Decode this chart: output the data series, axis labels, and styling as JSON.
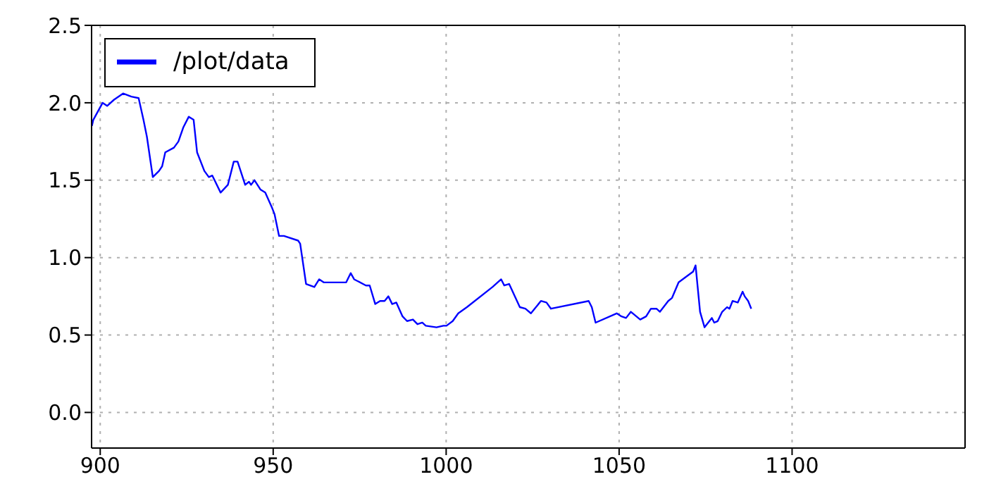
{
  "chart_data": {
    "type": "line",
    "x": [
      897.6,
      898,
      900.7,
      902,
      904,
      906.6,
      909,
      911.1,
      912.5,
      913.5,
      915.2,
      917,
      917.9,
      918.8,
      921.3,
      922.6,
      924,
      925.6,
      927,
      928,
      930.1,
      931.4,
      932.4,
      934.8,
      936.9,
      938.6,
      939.7,
      941.9,
      943,
      943.6,
      944.6,
      946.3,
      947.7,
      949.7,
      950.4,
      951.7,
      953.1,
      957.2,
      957.8,
      959.5,
      961.9,
      963.3,
      964.6,
      971.1,
      972.4,
      973.4,
      976.8,
      977.9,
      979.5,
      980.9,
      982.2,
      983.3,
      984.4,
      985.6,
      987.4,
      988.7,
      990.4,
      991.7,
      993.1,
      994.1,
      997.2,
      999.2,
      1000.1,
      1001.9,
      1003.5,
      1006,
      1013.4,
      1015.9,
      1016.8,
      1018.2,
      1021.3,
      1022.9,
      1024.5,
      1027.4,
      1029,
      1030.3,
      1041.2,
      1042.1,
      1043.2,
      1049.3,
      1050.7,
      1052,
      1053.4,
      1056.1,
      1057.8,
      1059.2,
      1060.8,
      1061.8,
      1064.2,
      1065.3,
      1067.2,
      1069.6,
      1071.4,
      1072.1,
      1073.4,
      1074.7,
      1076.1,
      1076.8,
      1077.5,
      1078.5,
      1079.8,
      1081.2,
      1081.9,
      1082.8,
      1084.3,
      1085.7,
      1086.3,
      1087.3,
      1088.2
    ],
    "series": [
      {
        "name": "/plot/data",
        "color": "#0000ff",
        "values": [
          1.85,
          1.89,
          2.0,
          1.98,
          2.02,
          2.06,
          2.04,
          2.03,
          1.89,
          1.78,
          1.52,
          1.56,
          1.59,
          1.68,
          1.71,
          1.75,
          1.84,
          1.91,
          1.89,
          1.68,
          1.56,
          1.52,
          1.53,
          1.42,
          1.47,
          1.62,
          1.62,
          1.47,
          1.49,
          1.47,
          1.5,
          1.44,
          1.42,
          1.32,
          1.28,
          1.14,
          1.14,
          1.11,
          1.09,
          0.83,
          0.81,
          0.86,
          0.84,
          0.84,
          0.9,
          0.86,
          0.82,
          0.82,
          0.7,
          0.72,
          0.72,
          0.75,
          0.7,
          0.71,
          0.62,
          0.59,
          0.6,
          0.57,
          0.58,
          0.56,
          0.55,
          0.56,
          0.56,
          0.59,
          0.64,
          0.68,
          0.81,
          0.86,
          0.82,
          0.83,
          0.68,
          0.67,
          0.64,
          0.72,
          0.71,
          0.67,
          0.72,
          0.68,
          0.58,
          0.64,
          0.62,
          0.61,
          0.65,
          0.6,
          0.62,
          0.67,
          0.67,
          0.65,
          0.72,
          0.74,
          0.84,
          0.88,
          0.91,
          0.95,
          0.65,
          0.55,
          0.59,
          0.61,
          0.58,
          0.59,
          0.65,
          0.68,
          0.67,
          0.72,
          0.71,
          0.78,
          0.75,
          0.72,
          0.67
        ]
      }
    ],
    "xlim": [
      897.5,
      1150
    ],
    "xticks": [
      900,
      950,
      1000,
      1050,
      1100
    ],
    "ylim": [
      -0.23,
      2.5
    ],
    "yticks": [
      {
        "value": 0,
        "label": "0.0"
      },
      {
        "value": 0.5,
        "label": "0.5"
      },
      {
        "value": 1,
        "label": "1.0"
      },
      {
        "value": 1.5,
        "label": "1.5"
      },
      {
        "value": 2,
        "label": "2.0"
      },
      {
        "value": 2.5,
        "label": "2.5"
      }
    ],
    "grid": true,
    "legend": "top left",
    "marker": "none",
    "line_style": "solid"
  }
}
